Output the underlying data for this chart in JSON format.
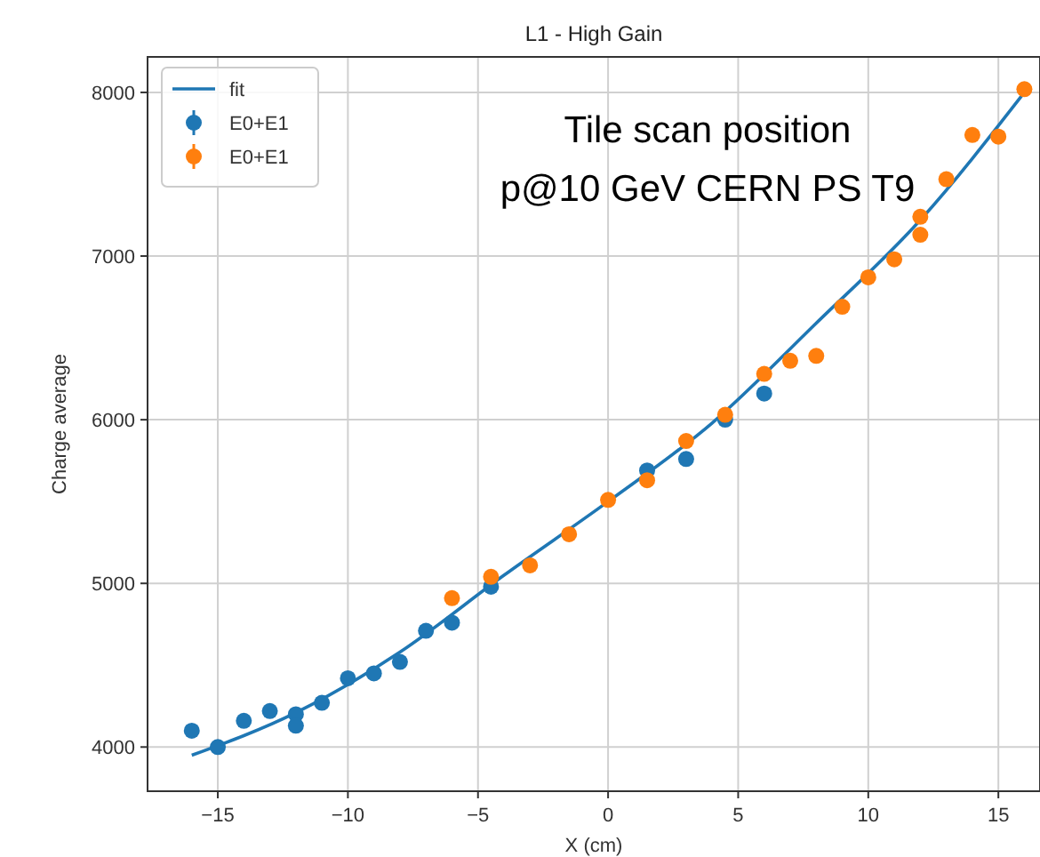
{
  "chart_data": {
    "type": "scatter",
    "title": "L1 - High Gain",
    "xlabel": "X (cm)",
    "ylabel": "Charge average",
    "annotations": [
      "Tile scan position",
      "p@10 GeV CERN PS T9"
    ],
    "xlim": [
      -17.7,
      16.6
    ],
    "ylim": [
      3730,
      8217
    ],
    "xticks": [
      -15,
      -10,
      -5,
      0,
      5,
      10,
      15
    ],
    "yticks": [
      4000,
      5000,
      6000,
      7000,
      8000
    ],
    "grid": true,
    "legend": "top left",
    "marker": "circle",
    "series": [
      {
        "name": "fit",
        "type": "line",
        "color": "#1f77b4",
        "marker": "none",
        "line_style": "solid",
        "x": [
          -16,
          -12,
          -8,
          -4,
          0,
          4,
          8,
          12,
          16
        ],
        "values": [
          3950,
          4210,
          4580,
          5050,
          5500,
          5980,
          6590,
          7220,
          8000
        ]
      },
      {
        "name": "E0+E1",
        "color": "#1f77b4",
        "x": [
          -16,
          -15,
          -14,
          -13,
          -12,
          -12,
          -11,
          -10,
          -9,
          -8,
          -7,
          -6,
          -4.5,
          1.5,
          3,
          4.5,
          6
        ],
        "values": [
          4100,
          4000,
          4160,
          4220,
          4200,
          4130,
          4270,
          4420,
          4450,
          4520,
          4710,
          4760,
          4980,
          5690,
          5760,
          6000,
          6160
        ]
      },
      {
        "name": "E0+E1",
        "color": "#ff7f0e",
        "x": [
          -6,
          -4.5,
          -3,
          -1.5,
          0,
          1.5,
          3,
          4.5,
          6,
          7,
          8,
          9,
          10,
          11,
          12,
          12,
          13,
          14,
          15,
          16
        ],
        "values": [
          4910,
          5040,
          5110,
          5300,
          5510,
          5630,
          5870,
          6030,
          6280,
          6360,
          6390,
          6690,
          6870,
          6980,
          7240,
          7130,
          7470,
          7740,
          7730,
          8020
        ]
      }
    ]
  }
}
